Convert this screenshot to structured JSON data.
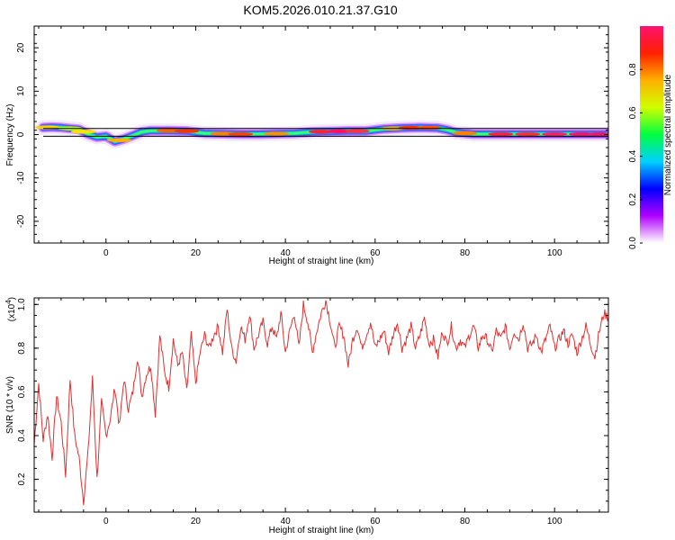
{
  "figure": {
    "title": "KOM5.2026.010.21.37.G10"
  },
  "chart_data": [
    {
      "type": "heatmap",
      "title": "KOM5.2026.010.21.37.G10",
      "xlabel": "Height of straight line (km)",
      "ylabel": "Frequency (Hz)",
      "xlim": [
        -16,
        112
      ],
      "ylim": [
        -25,
        25
      ],
      "x_ticks": [
        0,
        20,
        40,
        60,
        80,
        100
      ],
      "y_ticks": [
        -20,
        -10,
        0,
        10,
        20
      ],
      "frequency_track": {
        "x": [
          -14,
          -12,
          -10,
          -8,
          -6,
          -4,
          -2,
          0,
          2,
          4,
          6,
          8,
          10,
          14,
          18,
          22,
          26,
          30,
          34,
          38,
          42,
          46,
          50,
          54,
          58,
          62,
          66,
          70,
          74,
          76,
          78,
          80,
          82,
          86,
          90,
          94,
          98,
          102,
          106,
          110,
          112
        ],
        "y": [
          1.6,
          1.7,
          1.6,
          1.4,
          1.2,
          0.1,
          -0.6,
          -0.4,
          -1.6,
          -1.0,
          -0.2,
          0.6,
          0.9,
          0.9,
          0.8,
          0.3,
          0.2,
          0.1,
          0.1,
          0.2,
          0.3,
          0.6,
          0.7,
          0.8,
          0.8,
          1.3,
          1.5,
          1.6,
          1.5,
          1.1,
          0.5,
          0.3,
          0.1,
          0.1,
          0.1,
          0.1,
          0.1,
          0.1,
          0.1,
          0.1,
          0.1
        ]
      },
      "band_frequency_range": [
        -0.8,
        1.0
      ],
      "colorbar": {
        "label": "Normalized spectral amplitude",
        "range": [
          0.0,
          1.0
        ],
        "ticks": [
          "0.0",
          "0.2",
          "0.4",
          "0.6",
          "0.8"
        ],
        "colors": [
          "#ffffff",
          "#b000ff",
          "#0000ff",
          "#00d0ff",
          "#00ff40",
          "#d0ff00",
          "#ffb000",
          "#ff2000",
          "#ff1070"
        ]
      }
    },
    {
      "type": "line",
      "xlabel": "Height of straight line (km)",
      "ylabel": "SNR (10 * v/v)",
      "y_multiplier": "(x10",
      "y_multiplier_exp": "4",
      "y_multiplier_close": ")",
      "xlim": [
        -16,
        112
      ],
      "ylim": [
        0.05,
        1.03
      ],
      "x_ticks": [
        0,
        20,
        40,
        60,
        80,
        100
      ],
      "y_ticks": [
        0.2,
        0.4,
        0.6,
        0.8,
        1.0
      ],
      "y_tick_labels": [
        "0.2",
        "0.4",
        "0.6",
        "0.8",
        "1.0"
      ],
      "series": [
        {
          "name": "SNR",
          "color": "#e03030",
          "x": [
            -16,
            -15,
            -14,
            -13,
            -12,
            -11,
            -10,
            -9,
            -8,
            -7,
            -6,
            -5,
            -4,
            -3,
            -2,
            -1,
            0,
            1,
            2,
            3,
            4,
            5,
            6,
            7,
            8,
            9,
            10,
            11,
            12,
            13,
            14,
            15,
            16,
            17,
            18,
            19,
            20,
            21,
            22,
            23,
            24,
            25,
            26,
            27,
            28,
            29,
            30,
            31,
            32,
            33,
            34,
            35,
            36,
            37,
            38,
            39,
            40,
            41,
            42,
            43,
            44,
            45,
            46,
            47,
            48,
            49,
            50,
            51,
            52,
            53,
            54,
            55,
            56,
            57,
            58,
            59,
            60,
            61,
            62,
            63,
            64,
            65,
            66,
            67,
            68,
            69,
            70,
            71,
            72,
            73,
            74,
            75,
            76,
            77,
            78,
            79,
            80,
            81,
            82,
            83,
            84,
            85,
            86,
            87,
            88,
            89,
            90,
            91,
            92,
            93,
            94,
            95,
            96,
            97,
            98,
            99,
            100,
            101,
            102,
            103,
            104,
            105,
            106,
            107,
            108,
            109,
            110,
            111,
            112
          ],
          "values": [
            0.36,
            0.64,
            0.38,
            0.5,
            0.3,
            0.58,
            0.46,
            0.22,
            0.66,
            0.4,
            0.3,
            0.1,
            0.32,
            0.66,
            0.2,
            0.55,
            0.4,
            0.48,
            0.62,
            0.44,
            0.66,
            0.52,
            0.6,
            0.76,
            0.58,
            0.68,
            0.72,
            0.5,
            0.86,
            0.7,
            0.62,
            0.84,
            0.72,
            0.78,
            0.6,
            0.86,
            0.64,
            0.78,
            0.86,
            0.8,
            0.86,
            0.9,
            0.78,
            0.98,
            0.8,
            0.74,
            0.9,
            0.84,
            0.96,
            0.8,
            0.86,
            0.92,
            0.82,
            0.9,
            0.84,
            0.96,
            0.78,
            0.88,
            0.96,
            0.8,
            1.0,
            0.92,
            0.78,
            0.88,
            0.96,
            1.02,
            0.92,
            0.8,
            0.9,
            0.86,
            0.72,
            0.84,
            0.9,
            0.8,
            0.86,
            0.92,
            0.8,
            0.84,
            0.88,
            0.78,
            0.86,
            0.92,
            0.8,
            0.84,
            0.9,
            0.8,
            0.86,
            0.94,
            0.82,
            0.84,
            0.76,
            0.88,
            0.82,
            0.9,
            0.8,
            0.84,
            0.8,
            0.86,
            0.9,
            0.8,
            0.86,
            0.84,
            0.78,
            0.88,
            0.84,
            0.9,
            0.8,
            0.88,
            0.84,
            0.92,
            0.8,
            0.82,
            0.86,
            0.78,
            0.84,
            0.9,
            0.8,
            0.84,
            0.88,
            0.82,
            0.86,
            0.78,
            0.84,
            0.9,
            0.82,
            0.76,
            0.88,
            0.96,
            0.94
          ]
        }
      ]
    }
  ]
}
